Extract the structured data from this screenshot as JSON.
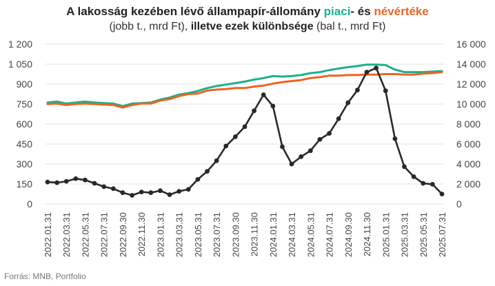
{
  "title": {
    "line1_prefix": "A lakosság kezében lévő állampapír-állomány ",
    "line1_piaci": "piaci",
    "line1_mid": "- és ",
    "line1_nevertek": "névértéke",
    "line2_a": "(jobb t., mrd Ft), ",
    "line2_b": "illetve ezek különbsége",
    "line2_c": " (bal t., mrd Ft)"
  },
  "source": "Forrás: MNB, Portfolio",
  "colors": {
    "piaci": "#1bb08d",
    "nevertek": "#ee6320",
    "kulonbseg": "#252a27",
    "grid": "#e3e3e3",
    "axis_text": "#444444"
  },
  "chart_data": {
    "type": "line",
    "x": [
      "2022.01.31",
      "2022.02.28",
      "2022.03.31",
      "2022.04.30",
      "2022.05.31",
      "2022.06.30",
      "2022.07.31",
      "2022.08.31",
      "2022.09.30",
      "2022.10.31",
      "2022.11.30",
      "2022.12.31",
      "2023.01.31",
      "2023.02.28",
      "2023.03.31",
      "2023.04.30",
      "2023.05.31",
      "2023.06.30",
      "2023.07.31",
      "2023.08.31",
      "2023.09.30",
      "2023.10.31",
      "2023.11.30",
      "2023.12.31",
      "2024.01.31",
      "2024.02.29",
      "2024.03.31",
      "2024.04.30",
      "2024.05.31",
      "2024.06.30",
      "2024.07.31",
      "2024.08.31",
      "2024.09.30",
      "2024.10.31",
      "2024.11.30",
      "2024.12.31",
      "2025.01.31",
      "2025.02.28",
      "2025.03.31",
      "2025.04.30",
      "2025.05.31",
      "2025.06.30",
      "2025.07.31"
    ],
    "x_tick_labels": [
      "2022.01.31",
      "2022.03.31",
      "2022.05.31",
      "2022.07.31",
      "2022.09.30",
      "2022.11.30",
      "2023.01.31",
      "2023.03.31",
      "2023.05.31",
      "2023.07.31",
      "2023.09.30",
      "2023.11.30",
      "2024.01.31",
      "2024.03.31",
      "2024.05.31",
      "2024.07.31",
      "2024.09.30",
      "2024.11.30",
      "2025.01.31",
      "2025.03.31",
      "2025.05.31",
      "2025.07.31"
    ],
    "y_left": {
      "min": 0,
      "max": 1200,
      "ticks": [
        0,
        150,
        300,
        450,
        600,
        750,
        900,
        1050,
        1200
      ],
      "tick_labels": [
        "0",
        "150",
        "300",
        "450",
        "600",
        "750",
        "900",
        "1 050",
        "1 200"
      ]
    },
    "y_right": {
      "min": 0,
      "max": 16000,
      "ticks": [
        0,
        2000,
        4000,
        6000,
        8000,
        10000,
        12000,
        14000,
        16000
      ],
      "tick_labels": [
        "0",
        "2 000",
        "4 000",
        "6 000",
        "8 000",
        "10 000",
        "12 000",
        "14 000",
        "16 000"
      ]
    },
    "grid": true,
    "series": [
      {
        "key": "piaci",
        "axis": "right",
        "marker": false,
        "values": [
          10150,
          10250,
          10050,
          10150,
          10250,
          10150,
          10100,
          10050,
          9800,
          10050,
          10100,
          10150,
          10450,
          10650,
          10950,
          11100,
          11300,
          11600,
          11800,
          11950,
          12100,
          12250,
          12450,
          12600,
          12800,
          12750,
          12800,
          12900,
          13100,
          13200,
          13400,
          13550,
          13700,
          13800,
          13950,
          13950,
          13900,
          13450,
          13200,
          13200,
          13200,
          13250,
          13300
        ]
      },
      {
        "key": "nevertek",
        "axis": "right",
        "marker": false,
        "values": [
          10000,
          10050,
          9900,
          10000,
          10050,
          10000,
          9950,
          9900,
          9650,
          9900,
          10050,
          10050,
          10350,
          10500,
          10800,
          11000,
          11050,
          11350,
          11450,
          11500,
          11600,
          11600,
          11750,
          11850,
          12050,
          12200,
          12300,
          12400,
          12600,
          12700,
          12850,
          12850,
          12900,
          12900,
          12950,
          12950,
          13000,
          13000,
          12950,
          12950,
          13050,
          13100,
          13200
        ]
      },
      {
        "key": "kulonbseg",
        "axis": "left",
        "marker": true,
        "values": [
          165,
          160,
          170,
          190,
          180,
          155,
          130,
          115,
          85,
          65,
          90,
          85,
          100,
          70,
          95,
          110,
          185,
          245,
          325,
          435,
          505,
          580,
          700,
          820,
          735,
          430,
          300,
          355,
          400,
          485,
          530,
          640,
          760,
          855,
          990,
          1020,
          850,
          490,
          280,
          205,
          155,
          148,
          75
        ]
      }
    ]
  }
}
